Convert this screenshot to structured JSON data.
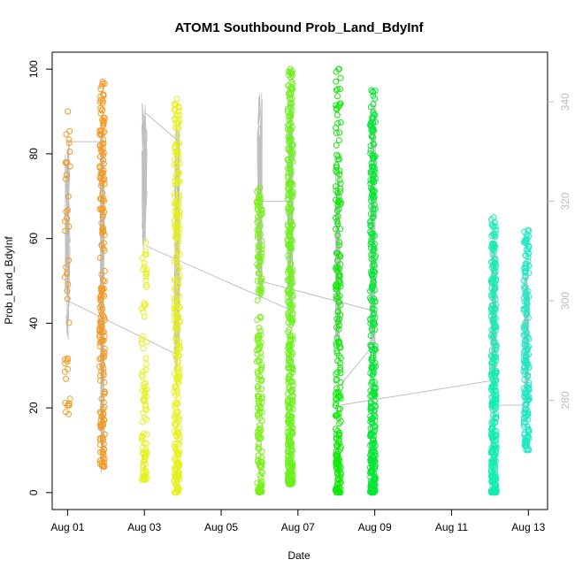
{
  "chart_data": {
    "type": "scatter",
    "title": "ATOM1 Southbound Prob_Land_BdyInf",
    "xlabel": "Date",
    "ylabel": "Prob_Land_BdyInf",
    "x_ticks": [
      "Aug 01",
      "Aug 03",
      "Aug 05",
      "Aug 07",
      "Aug 09",
      "Aug 11",
      "Aug 13"
    ],
    "x_tick_days": [
      1,
      3,
      5,
      7,
      9,
      11,
      13
    ],
    "xlim_days": [
      0.6,
      13.5
    ],
    "y_ticks": [
      0,
      20,
      40,
      60,
      80,
      100
    ],
    "ylim": [
      -4,
      104
    ],
    "secondary_y_ticks": [
      280,
      300,
      320,
      340
    ],
    "secondary_ylim": [
      258,
      350
    ],
    "grid": false,
    "series": [
      {
        "day": 1.0,
        "color": "#f39a25",
        "y_min": 18,
        "y_max": 90,
        "n": 40,
        "dist": "uniform",
        "extra": [
          90,
          75,
          18.5
        ]
      },
      {
        "day": 1.9,
        "color": "#f39a25",
        "y_min": 6,
        "y_max": 97,
        "n": 200,
        "dist": "uniform",
        "extra": [
          97,
          92,
          88,
          85,
          6.5
        ]
      },
      {
        "day": 3.0,
        "color": "#e6f01f",
        "y_min": 3,
        "y_max": 59,
        "n": 90,
        "dist": "low",
        "extra": [
          59,
          3
        ]
      },
      {
        "day": 3.85,
        "color": "#e6f01f",
        "y_min": 0,
        "y_max": 93,
        "n": 260,
        "dist": "mid",
        "extra": [
          93,
          86,
          0,
          1
        ]
      },
      {
        "day": 6.0,
        "color": "#7af018",
        "y_min": 0,
        "y_max": 72,
        "n": 180,
        "dist": "low",
        "extra": [
          72,
          61,
          48,
          32,
          0.5
        ]
      },
      {
        "day": 6.8,
        "color": "#6ef020",
        "y_min": 2,
        "y_max": 100,
        "n": 420,
        "dist": "low",
        "extra": [
          100,
          97,
          92,
          89,
          85,
          67,
          64,
          62,
          47,
          2
        ]
      },
      {
        "day": 8.05,
        "color": "#10e80a",
        "y_min": 0,
        "y_max": 100,
        "n": 220,
        "dist": "low",
        "extra": [
          100,
          100,
          51,
          41,
          0,
          1,
          0.5
        ]
      },
      {
        "day": 8.95,
        "color": "#0ae638",
        "y_min": 0,
        "y_max": 95,
        "n": 360,
        "dist": "low",
        "extra": [
          95,
          86,
          79,
          59,
          48,
          40,
          0,
          0.5
        ]
      },
      {
        "day": 12.1,
        "color": "#16ecb2",
        "y_min": 0,
        "y_max": 65,
        "n": 300,
        "dist": "low",
        "extra": [
          65,
          61,
          58,
          55,
          0.5
        ]
      },
      {
        "day": 12.95,
        "color": "#20e8c4",
        "y_min": 10,
        "y_max": 62,
        "n": 180,
        "dist": "mid",
        "extra": [
          62,
          56,
          54,
          10
        ]
      }
    ],
    "secondary_line": {
      "color": "#c0c0c0",
      "segments": [
        {
          "day": 1.0,
          "y2_lo": 292,
          "y2_hi": 332
        },
        {
          "day": 1.9,
          "y2_lo": 265,
          "y2_hi": 335
        },
        {
          "day": 3.0,
          "y2_lo": 310,
          "y2_hi": 340
        },
        {
          "day": 3.85,
          "y2_lo": 285,
          "y2_hi": 338
        },
        {
          "day": 6.0,
          "y2_lo": 300,
          "y2_hi": 342
        },
        {
          "day": 6.8,
          "y2_lo": 296,
          "y2_hi": 342
        },
        {
          "day": 8.05,
          "y2_lo": 290,
          "y2_hi": 330
        },
        {
          "day": 8.95,
          "y2_lo": 282,
          "y2_hi": 342
        },
        {
          "day": 12.1,
          "y2_lo": 275,
          "y2_hi": 315
        },
        {
          "day": 12.95,
          "y2_lo": 278,
          "y2_hi": 307
        }
      ],
      "connectors": [
        [
          1.0,
          332,
          1.9,
          332
        ],
        [
          1.0,
          300,
          3.9,
          289
        ],
        [
          3.0,
          338,
          3.9,
          332
        ],
        [
          3.05,
          311,
          6.85,
          298
        ],
        [
          6.0,
          304,
          8.95,
          298
        ],
        [
          6.05,
          320,
          6.9,
          320
        ],
        [
          8.1,
          283,
          8.95,
          291
        ],
        [
          8.1,
          279,
          12.1,
          284
        ],
        [
          12.1,
          279,
          12.95,
          279
        ]
      ]
    }
  }
}
